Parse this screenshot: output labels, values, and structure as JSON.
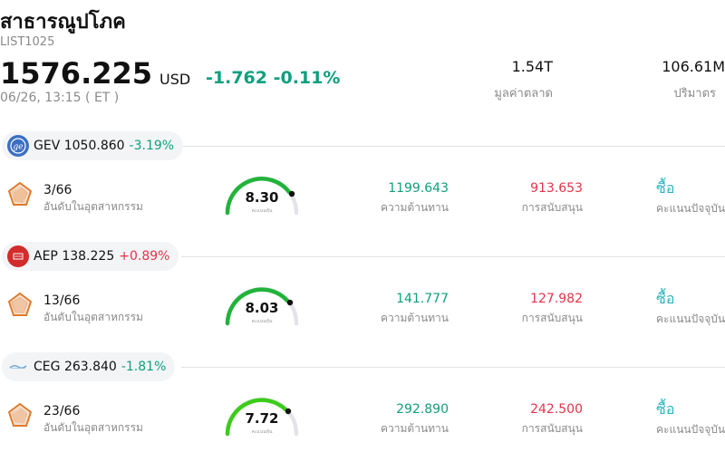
{
  "header": {
    "title": "สาธารณูปโภค",
    "code": "LIST1025",
    "price": "1576.225",
    "currency": "USD",
    "change": "-1.762",
    "change_pct": "-0.11%",
    "time": "06/26, 13:15 ( ET )",
    "market_cap_value": "1.54T",
    "market_cap_label": "มูลค่าตลาด",
    "volume_value": "106.61M",
    "volume_label": "ปริมาตร"
  },
  "colors": {
    "down": "#0e9f7e",
    "up": "#e5334a",
    "gauge": "#22b33a",
    "action": "#2bb3c0"
  },
  "stocks": [
    {
      "ticker": "GEV",
      "price": "1050.860",
      "change_pct": "-3.19%",
      "direction": "down",
      "logo": "ge-logo-icon",
      "rank": "3/66",
      "rank_label": "อันดับในอุตสาหกรรม",
      "score": "8.30",
      "score_label": "คะแนนหุ้น",
      "resistance": "1199.643",
      "resistance_label": "ความต้านทาน",
      "support": "913.653",
      "support_label": "การสนับสนุน",
      "action": "ซื้อ",
      "action_label": "คะแนนปัจจุบัน"
    },
    {
      "ticker": "AEP",
      "price": "138.225",
      "change_pct": "+0.89%",
      "direction": "up",
      "logo": "aep-logo-icon",
      "rank": "13/66",
      "rank_label": "อันดับในอุตสาหกรรม",
      "score": "8.03",
      "score_label": "คะแนนหุ้น",
      "resistance": "141.777",
      "resistance_label": "ความต้านทาน",
      "support": "127.982",
      "support_label": "การสนับสนุน",
      "action": "ซื้อ",
      "action_label": "คะแนนปัจจุบัน"
    },
    {
      "ticker": "CEG",
      "price": "263.840",
      "change_pct": "-1.81%",
      "direction": "down",
      "logo": "ceg-logo-icon",
      "rank": "23/66",
      "rank_label": "อันดับในอุตสาหกรรม",
      "score": "7.72",
      "score_label": "คะแนนหุ้น",
      "resistance": "292.890",
      "resistance_label": "ความต้านทาน",
      "support": "242.500",
      "support_label": "การสนับสนุน",
      "action": "ซื้อ",
      "action_label": "คะแนนปัจจุบัน"
    }
  ]
}
